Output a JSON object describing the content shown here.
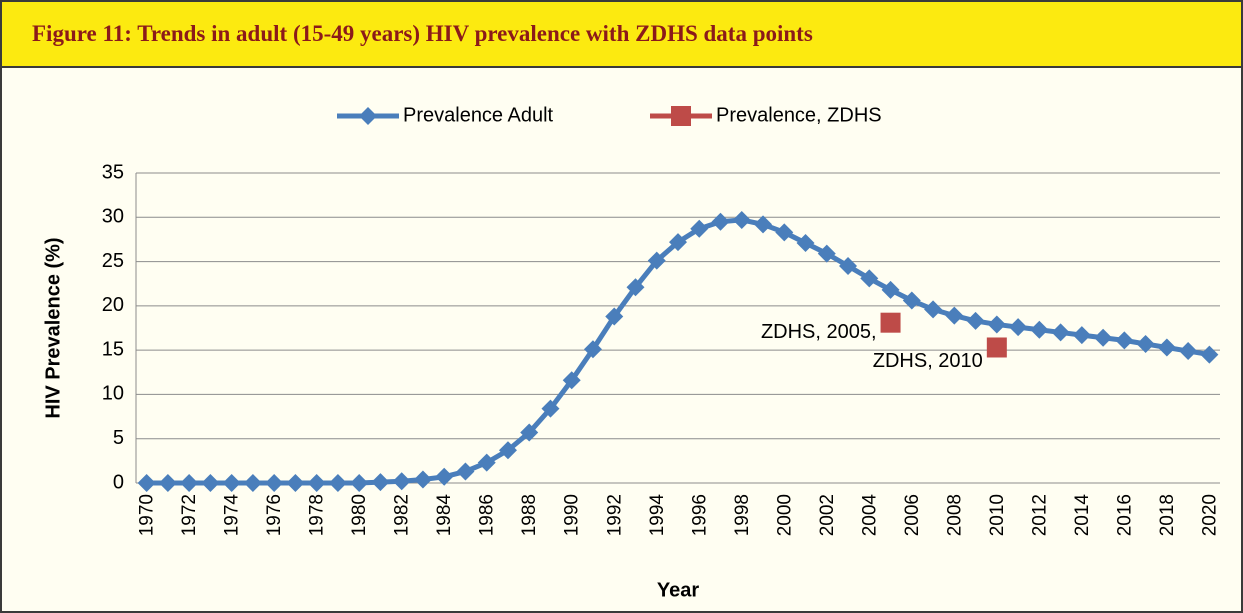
{
  "header": {
    "title": "Figure 11: Trends in adult (15-49 years) HIV prevalence with ZDHS data points"
  },
  "chart_data": {
    "type": "line",
    "x": [
      1970,
      1971,
      1972,
      1973,
      1974,
      1975,
      1976,
      1977,
      1978,
      1979,
      1980,
      1981,
      1982,
      1983,
      1984,
      1985,
      1986,
      1987,
      1988,
      1989,
      1990,
      1991,
      1992,
      1993,
      1994,
      1995,
      1996,
      1997,
      1998,
      1999,
      2000,
      2001,
      2002,
      2003,
      2004,
      2005,
      2006,
      2007,
      2008,
      2009,
      2010,
      2011,
      2012,
      2013,
      2014,
      2015,
      2016,
      2017,
      2018,
      2019,
      2020
    ],
    "series": [
      {
        "name": "Prevalence Adult",
        "color": "#4a7ebb",
        "marker": "diamond",
        "values": [
          0,
          0,
          0,
          0,
          0,
          0,
          0,
          0,
          0,
          0,
          0,
          0.1,
          0.2,
          0.4,
          0.7,
          1.3,
          2.3,
          3.7,
          5.7,
          8.4,
          11.6,
          15.1,
          18.8,
          22.1,
          25.1,
          27.2,
          28.7,
          29.5,
          29.7,
          29.2,
          28.3,
          27.1,
          25.9,
          24.5,
          23.1,
          21.8,
          20.6,
          19.6,
          18.9,
          18.3,
          17.9,
          17.6,
          17.3,
          17.0,
          16.7,
          16.4,
          16.1,
          15.7,
          15.3,
          14.9,
          14.5
        ]
      },
      {
        "name": "Prevalence, ZDHS",
        "color": "#be4b48",
        "marker": "square",
        "values": [
          null,
          null,
          null,
          null,
          null,
          null,
          null,
          null,
          null,
          null,
          null,
          null,
          null,
          null,
          null,
          null,
          null,
          null,
          null,
          null,
          null,
          null,
          null,
          null,
          null,
          null,
          null,
          null,
          null,
          null,
          null,
          null,
          null,
          null,
          null,
          18.1,
          null,
          null,
          null,
          null,
          15.3,
          null,
          null,
          null,
          null,
          null,
          null,
          null,
          null,
          null,
          null
        ]
      }
    ],
    "annotations": [
      "ZDHS, 2005,",
      "ZDHS, 2010"
    ],
    "xlabel": "Year",
    "ylabel": "HIV Prevalence (%)",
    "xlim": [
      1969.5,
      2020.5
    ],
    "xticks": [
      1970,
      1972,
      1974,
      1976,
      1978,
      1980,
      1982,
      1984,
      1986,
      1988,
      1990,
      1992,
      1994,
      1996,
      1998,
      2000,
      2002,
      2004,
      2006,
      2008,
      2010,
      2012,
      2014,
      2016,
      2018,
      2020
    ],
    "ylim": [
      0,
      35
    ],
    "yticks": [
      0,
      5,
      10,
      15,
      20,
      25,
      30,
      35
    ],
    "grid": true,
    "legend": "top"
  }
}
